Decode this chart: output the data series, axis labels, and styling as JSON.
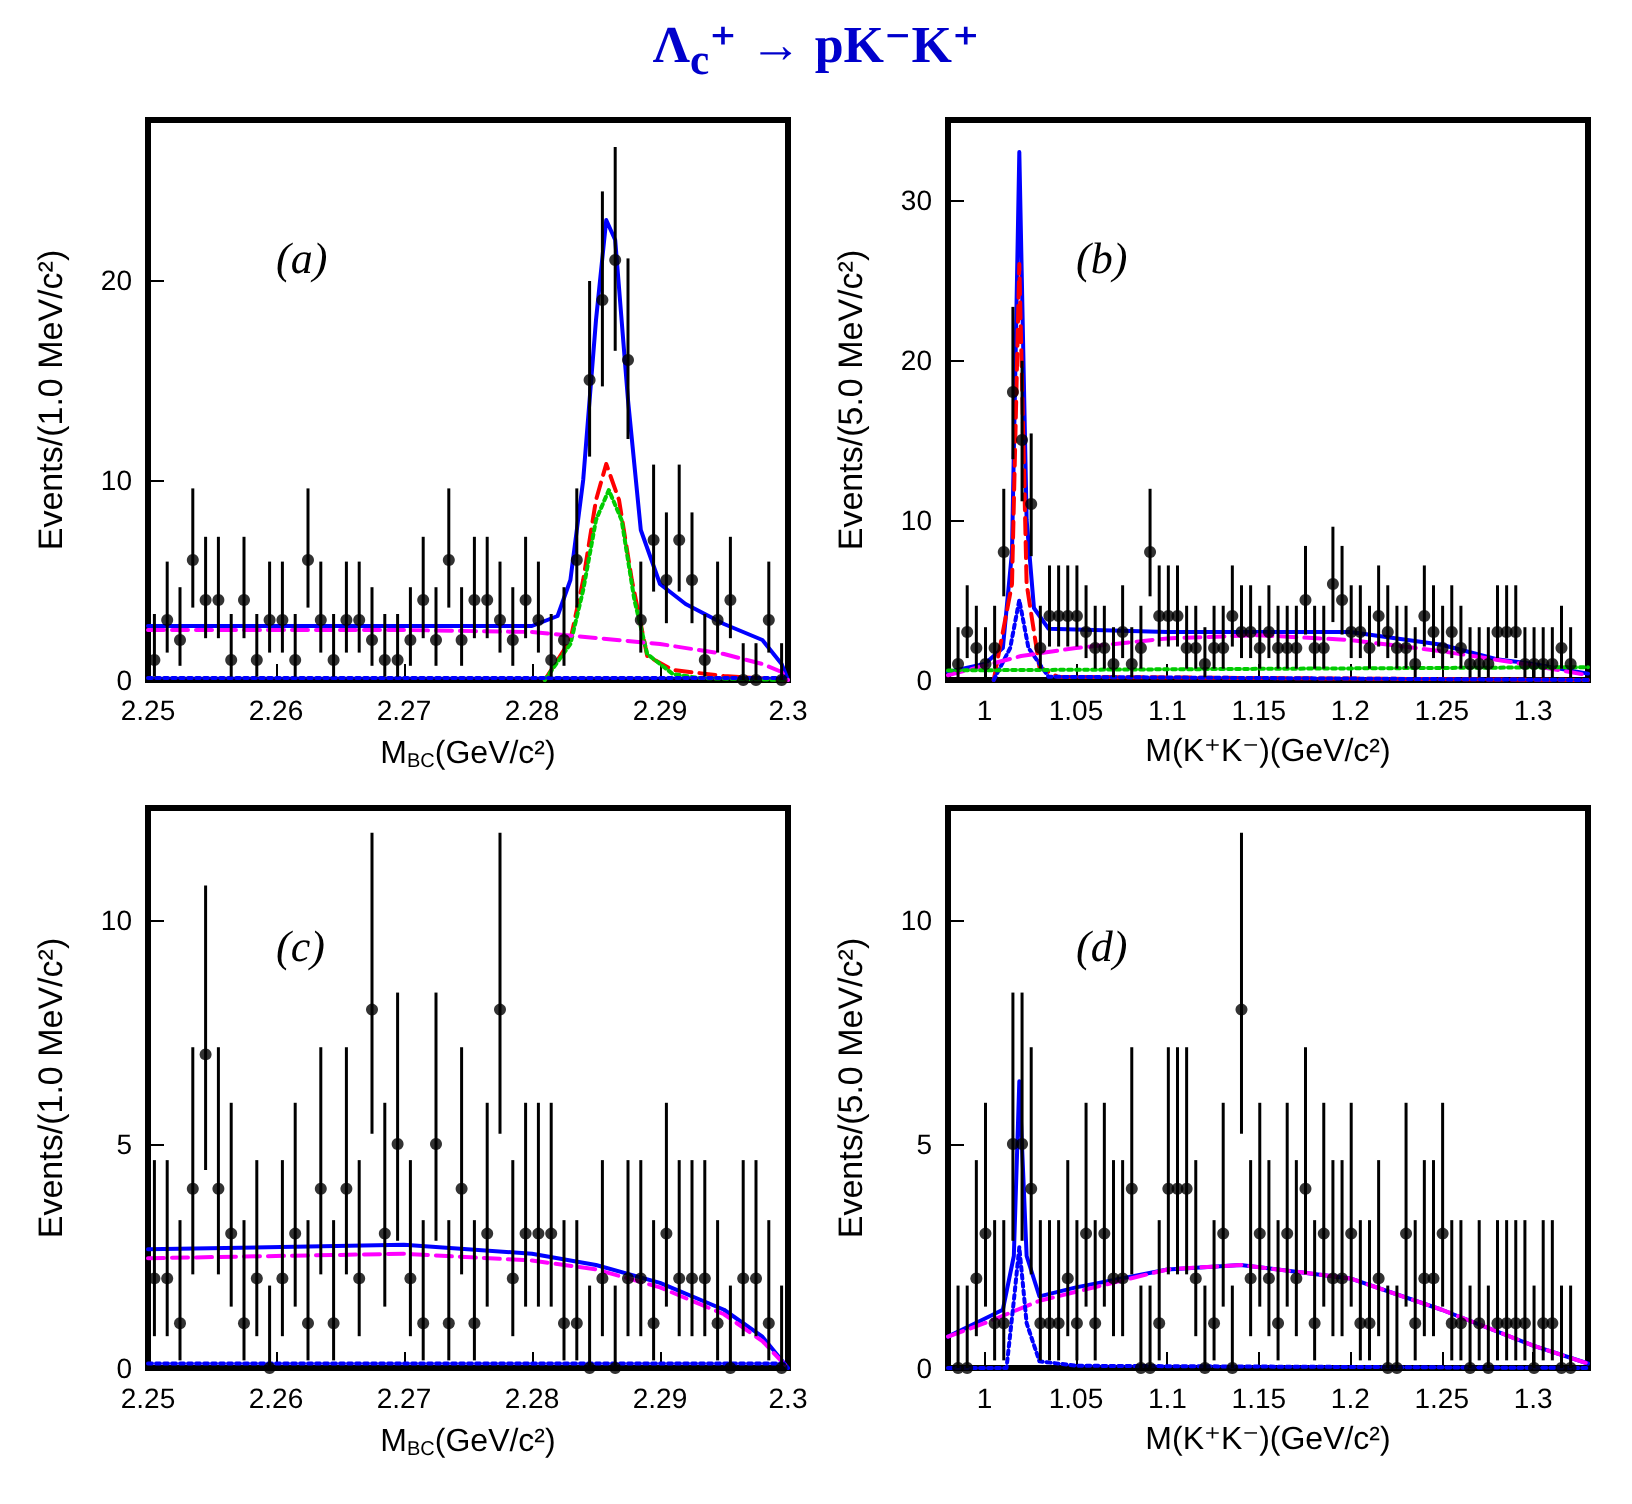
{
  "chart_data": [
    {
      "type": "scatter",
      "title": "Λ$_{c}$⁺ → pK⁻K⁺",
      "xlabel": "M$_{BC}$(GeV/c²)",
      "ylabel": "Events/(1.0 MeV/c²)",
      "xlim": [
        2.25,
        2.3
      ],
      "ylim": [
        0,
        28
      ],
      "xticks": [
        2.25,
        2.26,
        2.27,
        2.28,
        2.29,
        2.3
      ],
      "yticks": [
        0,
        10,
        20
      ],
      "grid": false,
      "annotations": [
        "(a)"
      ],
      "series": [
        {
          "type": "scatter",
          "marker": "circle",
          "color": "#000000",
          "x": [
            2.2505,
            2.2515,
            2.2525,
            2.2535,
            2.2545,
            2.2555,
            2.2565,
            2.2575,
            2.2585,
            2.2595,
            2.2605,
            2.2615,
            2.2625,
            2.2635,
            2.2645,
            2.2655,
            2.2665,
            2.2675,
            2.2685,
            2.2695,
            2.2705,
            2.2715,
            2.2725,
            2.2735,
            2.2745,
            2.2755,
            2.2765,
            2.2775,
            2.2785,
            2.2795,
            2.2805,
            2.2815,
            2.2825,
            2.2835,
            2.2845,
            2.2855,
            2.2865,
            2.2875,
            2.2885,
            2.2895,
            2.2905,
            2.2915,
            2.2925,
            2.2935,
            2.2945,
            2.2955,
            2.2965,
            2.2975,
            2.2985,
            2.2995
          ],
          "values": [
            1,
            3,
            2,
            6,
            4,
            4,
            1,
            4,
            1,
            3,
            3,
            1,
            6,
            3,
            1,
            3,
            3,
            2,
            1,
            1,
            2,
            4,
            2,
            6,
            2,
            4,
            4,
            3,
            2,
            4,
            3,
            1,
            2,
            6,
            15,
            19,
            21,
            16,
            3,
            7,
            5,
            7,
            5,
            1,
            3,
            4,
            0,
            0,
            3,
            0
          ],
          "errors": [
            [
              0.17,
              3.3
            ],
            [
              1.37,
              5.92
            ],
            [
              0.71,
              4.64
            ],
            [
              3.62,
              9.58
            ],
            [
              2.09,
              7.16
            ],
            [
              2.09,
              7.16
            ],
            [
              0.17,
              3.3
            ],
            [
              2.09,
              7.16
            ],
            [
              0.17,
              3.3
            ],
            [
              1.37,
              5.92
            ],
            [
              1.37,
              5.92
            ],
            [
              0.17,
              3.3
            ],
            [
              3.62,
              9.58
            ],
            [
              1.37,
              5.92
            ],
            [
              0.17,
              3.3
            ],
            [
              1.37,
              5.92
            ],
            [
              1.37,
              5.92
            ],
            [
              0.71,
              4.64
            ],
            [
              0.17,
              3.3
            ],
            [
              0.17,
              3.3
            ],
            [
              0.71,
              4.64
            ],
            [
              2.09,
              7.16
            ],
            [
              0.71,
              4.64
            ],
            [
              3.62,
              9.58
            ],
            [
              0.71,
              4.64
            ],
            [
              2.09,
              7.16
            ],
            [
              2.09,
              7.16
            ],
            [
              1.37,
              5.92
            ],
            [
              0.71,
              4.64
            ],
            [
              2.09,
              7.16
            ],
            [
              1.37,
              5.92
            ],
            [
              0.17,
              3.3
            ],
            [
              0.71,
              4.64
            ],
            [
              3.62,
              9.58
            ],
            [
              11.17,
              19.95
            ],
            [
              14.68,
              24.43
            ],
            [
              16.46,
              26.65
            ],
            [
              12.05,
              21.08
            ],
            [
              1.37,
              5.92
            ],
            [
              4.42,
              10.77
            ],
            [
              2.84,
              8.38
            ],
            [
              4.42,
              10.77
            ],
            [
              2.84,
              8.38
            ],
            [
              0.17,
              3.3
            ],
            [
              1.37,
              5.92
            ],
            [
              2.09,
              7.16
            ],
            [
              0,
              1.84
            ],
            [
              0,
              1.84
            ],
            [
              1.37,
              5.92
            ],
            [
              0,
              1.84
            ]
          ]
        },
        {
          "type": "line",
          "color": "#0000ff",
          "line_style": "solid",
          "x": [
            2.25,
            2.28,
            2.282,
            2.283,
            2.284,
            2.285,
            2.2858,
            2.2865,
            2.2875,
            2.2885,
            2.29,
            2.292,
            2.295,
            2.298,
            2.2995,
            2.3
          ],
          "values": [
            2.7,
            2.7,
            3.2,
            5,
            10,
            18,
            23,
            22,
            14,
            7.5,
            4.8,
            3.8,
            2.8,
            2,
            0.8,
            0
          ]
        },
        {
          "type": "line",
          "color": "#ff0000",
          "line_style": "dashed",
          "x": [
            2.281,
            2.283,
            2.284,
            2.285,
            2.2858,
            2.2868,
            2.2878,
            2.289,
            2.291,
            2.295,
            2.3
          ],
          "values": [
            0,
            2,
            5,
            9,
            10.8,
            9,
            5,
            1.2,
            0.5,
            0.2,
            0
          ]
        },
        {
          "type": "line",
          "color": "#00cc00",
          "line_style": "dotted",
          "x": [
            2.281,
            2.283,
            2.284,
            2.285,
            2.286,
            2.287,
            2.288,
            2.289,
            2.291,
            2.293,
            2.3
          ],
          "values": [
            0,
            1.8,
            4.5,
            8,
            9.5,
            8,
            4,
            1.3,
            0.3,
            0.1,
            0
          ]
        },
        {
          "type": "line",
          "color": "#ff00ff",
          "line_style": "dashed",
          "x": [
            2.25,
            2.27,
            2.28,
            2.285,
            2.29,
            2.295,
            2.298,
            2.2995,
            2.3
          ],
          "values": [
            2.5,
            2.5,
            2.4,
            2.1,
            1.8,
            1.3,
            0.8,
            0.4,
            0
          ]
        },
        {
          "type": "line",
          "color": "#0000ff",
          "line_style": "dotted",
          "x": [
            2.25,
            2.3
          ],
          "values": [
            0.1,
            0.1
          ]
        }
      ]
    },
    {
      "type": "scatter",
      "xlabel": "M(K⁺K⁻)(GeV/c²)",
      "ylabel": "Events/(5.0 MeV/c²)",
      "xlim": [
        0.98,
        1.33
      ],
      "ylim": [
        0,
        35
      ],
      "xticks": [
        1,
        1.05,
        1.1,
        1.15,
        1.2,
        1.25,
        1.3
      ],
      "yticks": [
        0,
        10,
        20,
        30
      ],
      "grid": false,
      "annotations": [
        "(b)"
      ],
      "series": [
        {
          "type": "scatter",
          "marker": "circle",
          "color": "#000000",
          "x": [
            0.9855,
            0.9905,
            0.9955,
            1.0005,
            1.0055,
            1.0105,
            1.0155,
            1.0205,
            1.0255,
            1.0305,
            1.0355,
            1.0405,
            1.0455,
            1.0505,
            1.0555,
            1.0605,
            1.0655,
            1.0705,
            1.0755,
            1.0805,
            1.0855,
            1.0905,
            1.0955,
            1.1005,
            1.1055,
            1.1105,
            1.1155,
            1.1205,
            1.1255,
            1.1305,
            1.1355,
            1.1405,
            1.1455,
            1.1505,
            1.1555,
            1.1605,
            1.1655,
            1.1705,
            1.1755,
            1.1805,
            1.1855,
            1.1905,
            1.1955,
            1.2005,
            1.2055,
            1.2105,
            1.2155,
            1.2205,
            1.2255,
            1.2305,
            1.2355,
            1.2405,
            1.2455,
            1.2505,
            1.2555,
            1.2605,
            1.2655,
            1.2705,
            1.2755,
            1.2805,
            1.2855,
            1.2905,
            1.2955,
            1.3005,
            1.3055,
            1.3105,
            1.3155,
            1.3205
          ],
          "values": [
            1,
            3,
            2,
            1,
            2,
            8,
            18,
            15,
            11,
            2,
            4,
            4,
            4,
            4,
            3,
            2,
            2,
            1,
            3,
            1,
            2,
            8,
            4,
            4,
            4,
            2,
            2,
            1,
            2,
            2,
            4,
            3,
            3,
            2,
            3,
            2,
            2,
            2,
            5,
            2,
            2,
            6,
            5,
            3,
            3,
            2,
            4,
            3,
            2,
            2,
            1,
            4,
            3,
            2,
            3,
            2,
            1,
            1,
            1,
            3,
            3,
            3,
            1,
            1,
            1,
            1,
            2,
            1
          ],
          "errors": [
            [
              0.17,
              3.3
            ],
            [
              1.37,
              5.92
            ],
            [
              0.71,
              4.64
            ],
            [
              0.17,
              3.3
            ],
            [
              0.71,
              4.64
            ],
            [
              5.23,
              11.95
            ],
            [
              13.8,
              23.32
            ],
            [
              11.17,
              19.95
            ],
            [
              7.74,
              15.41
            ],
            [
              0.71,
              4.64
            ],
            [
              2.09,
              7.16
            ],
            [
              2.09,
              7.16
            ],
            [
              2.09,
              7.16
            ],
            [
              2.09,
              7.16
            ],
            [
              1.37,
              5.92
            ],
            [
              0.71,
              4.64
            ],
            [
              0.71,
              4.64
            ],
            [
              0.17,
              3.3
            ],
            [
              1.37,
              5.92
            ],
            [
              0.17,
              3.3
            ],
            [
              0.71,
              4.64
            ],
            [
              5.23,
              11.95
            ],
            [
              2.09,
              7.16
            ],
            [
              2.09,
              7.16
            ],
            [
              2.09,
              7.16
            ],
            [
              0.71,
              4.64
            ],
            [
              0.71,
              4.64
            ],
            [
              0.17,
              3.3
            ],
            [
              0.71,
              4.64
            ],
            [
              0.71,
              4.64
            ],
            [
              2.09,
              7.16
            ],
            [
              1.37,
              5.92
            ],
            [
              1.37,
              5.92
            ],
            [
              0.71,
              4.64
            ],
            [
              1.37,
              5.92
            ],
            [
              0.71,
              4.64
            ],
            [
              0.71,
              4.64
            ],
            [
              0.71,
              4.64
            ],
            [
              2.84,
              8.38
            ],
            [
              0.71,
              4.64
            ],
            [
              0.71,
              4.64
            ],
            [
              3.62,
              9.58
            ],
            [
              2.84,
              8.38
            ],
            [
              1.37,
              5.92
            ],
            [
              1.37,
              5.92
            ],
            [
              0.71,
              4.64
            ],
            [
              2.09,
              7.16
            ],
            [
              1.37,
              5.92
            ],
            [
              0.71,
              4.64
            ],
            [
              0.71,
              4.64
            ],
            [
              0.17,
              3.3
            ],
            [
              2.09,
              7.16
            ],
            [
              1.37,
              5.92
            ],
            [
              0.71,
              4.64
            ],
            [
              1.37,
              5.92
            ],
            [
              0.71,
              4.64
            ],
            [
              0.17,
              3.3
            ],
            [
              0.17,
              3.3
            ],
            [
              0.17,
              3.3
            ],
            [
              1.37,
              5.92
            ],
            [
              1.37,
              5.92
            ],
            [
              1.37,
              5.92
            ],
            [
              0.17,
              3.3
            ],
            [
              0.17,
              3.3
            ],
            [
              0.17,
              3.3
            ],
            [
              0.17,
              3.3
            ],
            [
              0.71,
              4.64
            ],
            [
              0.17,
              3.3
            ]
          ]
        },
        {
          "type": "line",
          "color": "#0000ff",
          "line_style": "solid",
          "x": [
            0.98,
            1.0,
            1.01,
            1.015,
            1.019,
            1.023,
            1.027,
            1.035,
            1.1,
            1.2,
            1.25,
            1.28,
            1.3,
            1.33
          ],
          "values": [
            0.5,
            1,
            2,
            8,
            33,
            10,
            4.5,
            3.2,
            3,
            3,
            2.2,
            1.3,
            1,
            0.4
          ]
        },
        {
          "type": "line",
          "color": "#ff0000",
          "line_style": "dashed",
          "x": [
            1.005,
            1.015,
            1.019,
            1.023,
            1.03,
            1.04,
            1.33
          ],
          "values": [
            0,
            6,
            26,
            6,
            0.8,
            0.2,
            0
          ]
        },
        {
          "type": "line",
          "color": "#0000ff",
          "line_style": "dotted",
          "x": [
            1.005,
            1.014,
            1.019,
            1.024,
            1.035,
            1.33
          ],
          "values": [
            0,
            2,
            5,
            2,
            0.2,
            0
          ]
        },
        {
          "type": "line",
          "color": "#ff00ff",
          "line_style": "dashed",
          "x": [
            0.98,
            1.02,
            1.05,
            1.1,
            1.15,
            1.2,
            1.25,
            1.3,
            1.33
          ],
          "values": [
            0.3,
            1.5,
            2,
            2.6,
            2.8,
            2.5,
            1.8,
            0.9,
            0.3
          ]
        },
        {
          "type": "line",
          "color": "#00cc00",
          "line_style": "dotted",
          "x": [
            0.98,
            1.33
          ],
          "values": [
            0.6,
            0.8
          ]
        }
      ]
    },
    {
      "type": "scatter",
      "xlabel": "M$_{BC}$(GeV/c²)",
      "ylabel": "Events/(1.0 MeV/c²)",
      "xlim": [
        2.25,
        2.3
      ],
      "ylim": [
        0,
        12.5
      ],
      "xticks": [
        2.25,
        2.26,
        2.27,
        2.28,
        2.29,
        2.3
      ],
      "yticks": [
        0,
        5,
        10
      ],
      "grid": false,
      "annotations": [
        "(c)"
      ],
      "series": [
        {
          "type": "scatter",
          "marker": "circle",
          "color": "#000000",
          "x": [
            2.2505,
            2.2515,
            2.2525,
            2.2535,
            2.2545,
            2.2555,
            2.2565,
            2.2575,
            2.2585,
            2.2595,
            2.2605,
            2.2615,
            2.2625,
            2.2635,
            2.2645,
            2.2655,
            2.2665,
            2.2675,
            2.2685,
            2.2695,
            2.2705,
            2.2715,
            2.2725,
            2.2735,
            2.2745,
            2.2755,
            2.2765,
            2.2775,
            2.2785,
            2.2795,
            2.2805,
            2.2815,
            2.2825,
            2.2835,
            2.2845,
            2.2855,
            2.2865,
            2.2875,
            2.2885,
            2.2895,
            2.2905,
            2.2915,
            2.2925,
            2.2935,
            2.2945,
            2.2955,
            2.2965,
            2.2975,
            2.2985,
            2.2995
          ],
          "values": [
            2,
            2,
            1,
            4,
            7,
            4,
            3,
            1,
            2,
            0,
            2,
            3,
            1,
            4,
            1,
            4,
            2,
            8,
            3,
            5,
            2,
            1,
            5,
            1,
            4,
            1,
            3,
            8,
            2,
            3,
            3,
            3,
            1,
            1,
            0,
            2,
            0,
            2,
            2,
            1,
            3,
            2,
            2,
            2,
            1,
            0,
            2,
            2,
            1,
            0
          ],
          "errors": [
            [
              0.71,
              4.64
            ],
            [
              0.71,
              4.64
            ],
            [
              0.17,
              3.3
            ],
            [
              2.09,
              7.16
            ],
            [
              4.42,
              10.77
            ],
            [
              2.09,
              7.16
            ],
            [
              1.37,
              5.92
            ],
            [
              0.17,
              3.3
            ],
            [
              0.71,
              4.64
            ],
            [
              0,
              1.84
            ],
            [
              0.71,
              4.64
            ],
            [
              1.37,
              5.92
            ],
            [
              0.17,
              3.3
            ],
            [
              2.09,
              7.16
            ],
            [
              0.17,
              3.3
            ],
            [
              2.09,
              7.16
            ],
            [
              0.71,
              4.64
            ],
            [
              5.23,
              11.95
            ],
            [
              1.37,
              5.92
            ],
            [
              2.84,
              8.38
            ],
            [
              0.71,
              4.64
            ],
            [
              0.17,
              3.3
            ],
            [
              2.84,
              8.38
            ],
            [
              0.17,
              3.3
            ],
            [
              2.09,
              7.16
            ],
            [
              0.17,
              3.3
            ],
            [
              1.37,
              5.92
            ],
            [
              5.23,
              11.95
            ],
            [
              0.71,
              4.64
            ],
            [
              1.37,
              5.92
            ],
            [
              1.37,
              5.92
            ],
            [
              1.37,
              5.92
            ],
            [
              0.17,
              3.3
            ],
            [
              0.17,
              3.3
            ],
            [
              0,
              1.84
            ],
            [
              0.71,
              4.64
            ],
            [
              0,
              1.84
            ],
            [
              0.71,
              4.64
            ],
            [
              0.71,
              4.64
            ],
            [
              0.17,
              3.3
            ],
            [
              1.37,
              5.92
            ],
            [
              0.71,
              4.64
            ],
            [
              0.71,
              4.64
            ],
            [
              0.71,
              4.64
            ],
            [
              0.17,
              3.3
            ],
            [
              0,
              1.84
            ],
            [
              0.71,
              4.64
            ],
            [
              0.71,
              4.64
            ],
            [
              0.17,
              3.3
            ],
            [
              0,
              1.84
            ]
          ]
        },
        {
          "type": "line",
          "color": "#0000ff",
          "line_style": "solid",
          "x": [
            2.25,
            2.27,
            2.28,
            2.285,
            2.29,
            2.295,
            2.298,
            2.3
          ],
          "values": [
            2.65,
            2.75,
            2.55,
            2.3,
            1.9,
            1.3,
            0.7,
            0
          ]
        },
        {
          "type": "line",
          "color": "#ff00ff",
          "line_style": "dashed",
          "x": [
            2.25,
            2.27,
            2.28,
            2.285,
            2.29,
            2.295,
            2.298,
            2.3
          ],
          "values": [
            2.45,
            2.55,
            2.4,
            2.2,
            1.8,
            1.2,
            0.6,
            0
          ]
        },
        {
          "type": "line",
          "color": "#0000ff",
          "line_style": "dotted",
          "x": [
            2.25,
            2.3
          ],
          "values": [
            0.1,
            0.1
          ]
        }
      ]
    },
    {
      "type": "scatter",
      "xlabel": "M(K⁺K⁻)(GeV/c²)",
      "ylabel": "Events/(5.0 MeV/c²)",
      "xlim": [
        0.98,
        1.33
      ],
      "ylim": [
        0,
        12.5
      ],
      "xticks": [
        1,
        1.05,
        1.1,
        1.15,
        1.2,
        1.25,
        1.3
      ],
      "yticks": [
        0,
        5,
        10
      ],
      "grid": false,
      "annotations": [
        "(d)"
      ],
      "series": [
        {
          "type": "scatter",
          "marker": "circle",
          "color": "#000000",
          "x": [
            0.9855,
            0.9905,
            0.9955,
            1.0005,
            1.0055,
            1.0105,
            1.0155,
            1.0205,
            1.0255,
            1.0305,
            1.0355,
            1.0405,
            1.0455,
            1.0505,
            1.0555,
            1.0605,
            1.0655,
            1.0705,
            1.0755,
            1.0805,
            1.0855,
            1.0905,
            1.0955,
            1.1005,
            1.1055,
            1.1105,
            1.1155,
            1.1205,
            1.1255,
            1.1305,
            1.1355,
            1.1405,
            1.1455,
            1.1505,
            1.1555,
            1.1605,
            1.1655,
            1.1705,
            1.1755,
            1.1805,
            1.1855,
            1.1905,
            1.1955,
            1.2005,
            1.2055,
            1.2105,
            1.2155,
            1.2205,
            1.2255,
            1.2305,
            1.2355,
            1.2405,
            1.2455,
            1.2505,
            1.2555,
            1.2605,
            1.2655,
            1.2705,
            1.2755,
            1.2805,
            1.2855,
            1.2905,
            1.2955,
            1.3005,
            1.3055,
            1.3105,
            1.3155,
            1.3205
          ],
          "values": [
            0,
            0,
            2,
            3,
            1,
            1,
            5,
            5,
            4,
            1,
            1,
            1,
            2,
            1,
            3,
            1,
            3,
            2,
            2,
            4,
            0,
            0,
            1,
            4,
            4,
            4,
            2,
            0,
            1,
            3,
            0,
            8,
            2,
            3,
            2,
            1,
            3,
            2,
            4,
            1,
            3,
            2,
            2,
            3,
            1,
            1,
            2,
            0,
            0,
            3,
            1,
            2,
            2,
            3,
            1,
            1,
            0,
            1,
            0,
            1,
            1,
            1,
            1,
            0,
            1,
            1,
            0,
            0
          ],
          "errors": [
            [
              0,
              1.84
            ],
            [
              0,
              1.84
            ],
            [
              0.71,
              4.64
            ],
            [
              1.37,
              5.92
            ],
            [
              0.17,
              3.3
            ],
            [
              0.17,
              3.3
            ],
            [
              2.84,
              8.38
            ],
            [
              2.84,
              8.38
            ],
            [
              2.09,
              7.16
            ],
            [
              0.17,
              3.3
            ],
            [
              0.17,
              3.3
            ],
            [
              0.17,
              3.3
            ],
            [
              0.71,
              4.64
            ],
            [
              0.17,
              3.3
            ],
            [
              1.37,
              5.92
            ],
            [
              0.17,
              3.3
            ],
            [
              1.37,
              5.92
            ],
            [
              0.71,
              4.64
            ],
            [
              0.71,
              4.64
            ],
            [
              2.09,
              7.16
            ],
            [
              0,
              1.84
            ],
            [
              0,
              1.84
            ],
            [
              0.17,
              3.3
            ],
            [
              2.09,
              7.16
            ],
            [
              2.09,
              7.16
            ],
            [
              2.09,
              7.16
            ],
            [
              0.71,
              4.64
            ],
            [
              0,
              1.84
            ],
            [
              0.17,
              3.3
            ],
            [
              1.37,
              5.92
            ],
            [
              0,
              1.84
            ],
            [
              5.23,
              11.95
            ],
            [
              0.71,
              4.64
            ],
            [
              1.37,
              5.92
            ],
            [
              0.71,
              4.64
            ],
            [
              0.17,
              3.3
            ],
            [
              1.37,
              5.92
            ],
            [
              0.71,
              4.64
            ],
            [
              2.09,
              7.16
            ],
            [
              0.17,
              3.3
            ],
            [
              1.37,
              5.92
            ],
            [
              0.71,
              4.64
            ],
            [
              0.71,
              4.64
            ],
            [
              1.37,
              5.92
            ],
            [
              0.17,
              3.3
            ],
            [
              0.17,
              3.3
            ],
            [
              0.71,
              4.64
            ],
            [
              0,
              1.84
            ],
            [
              0,
              1.84
            ],
            [
              1.37,
              5.92
            ],
            [
              0.17,
              3.3
            ],
            [
              0.71,
              4.64
            ],
            [
              0.71,
              4.64
            ],
            [
              1.37,
              5.92
            ],
            [
              0.17,
              3.3
            ],
            [
              0.17,
              3.3
            ],
            [
              0,
              1.84
            ],
            [
              0.17,
              3.3
            ],
            [
              0,
              1.84
            ],
            [
              0.17,
              3.3
            ],
            [
              0.17,
              3.3
            ],
            [
              0.17,
              3.3
            ],
            [
              0.17,
              3.3
            ],
            [
              0,
              1.84
            ],
            [
              0.17,
              3.3
            ],
            [
              0.17,
              3.3
            ],
            [
              0,
              1.84
            ],
            [
              0,
              1.84
            ]
          ]
        },
        {
          "type": "line",
          "color": "#0000ff",
          "line_style": "solid",
          "x": [
            0.98,
            1.0,
            1.01,
            1.016,
            1.019,
            1.023,
            1.03,
            1.05,
            1.1,
            1.14,
            1.2,
            1.25,
            1.3,
            1.33
          ],
          "values": [
            0.7,
            1.1,
            1.3,
            2.5,
            6.4,
            2.5,
            1.6,
            1.8,
            2.2,
            2.3,
            2,
            1.3,
            0.5,
            0.1
          ]
        },
        {
          "type": "line",
          "color": "#ff00ff",
          "line_style": "dashed",
          "x": [
            0.98,
            1.0,
            1.03,
            1.1,
            1.14,
            1.2,
            1.25,
            1.3,
            1.33
          ],
          "values": [
            0.7,
            1,
            1.5,
            2.2,
            2.3,
            2,
            1.3,
            0.5,
            0.1
          ]
        },
        {
          "type": "line",
          "color": "#0000ff",
          "line_style": "dotted",
          "x": [
            0.98,
            1.012,
            1.016,
            1.019,
            1.023,
            1.03,
            1.05,
            1.33
          ],
          "values": [
            0,
            0,
            1.5,
            2.7,
            1,
            0.15,
            0.05,
            0
          ]
        }
      ]
    }
  ]
}
